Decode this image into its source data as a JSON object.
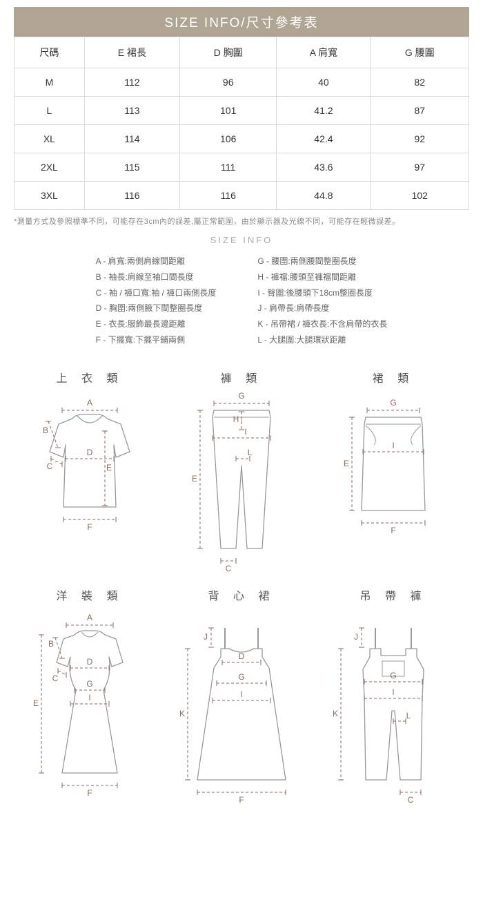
{
  "title": "SIZE  INFO/尺寸參考表",
  "table": {
    "columns": [
      "尺碼",
      "E  裙長",
      "D  胸圍",
      "A  肩寬",
      "G  腰圍"
    ],
    "rows": [
      [
        "M",
        "112",
        "96",
        "40",
        "82"
      ],
      [
        "L",
        "113",
        "101",
        "41.2",
        "87"
      ],
      [
        "XL",
        "114",
        "106",
        "42.4",
        "92"
      ],
      [
        "2XL",
        "115",
        "111",
        "43.6",
        "97"
      ],
      [
        "3XL",
        "116",
        "116",
        "44.8",
        "102"
      ]
    ]
  },
  "footnote": "*測量方式及參照標準不同，可能存在3cm內的誤差,屬正常範圍，由於顯示器及光線不同，可能存在輕微誤差。",
  "section_label": "SIZE INFO",
  "legend": {
    "left": [
      "A - 肩寬:兩側肩線間距離",
      "B - 袖長:肩線至袖口間長度",
      "C - 袖 / 褲口寬:袖 / 褲口兩側長度",
      "D - 胸圍:兩側腋下間整圈長度",
      "E - 衣長:服飾最長邊距離",
      "F - 下擺寬:下擺平鋪兩側"
    ],
    "right": [
      "G - 腰圍:兩側腰間整圈長度",
      "H - 褲襠:腰頭至褲襠間距離",
      "I - 臀圍:後腰頭下18cm整圈長度",
      "J - 肩帶長:肩帶長度",
      "K - 吊帶裙 / 褲衣長:不含肩帶的衣長",
      "L - 大腿圍:大腿環狀距離"
    ]
  },
  "garments": [
    {
      "title": "上 衣 類",
      "type": "top"
    },
    {
      "title": "褲 類",
      "type": "pants"
    },
    {
      "title": "裙 類",
      "type": "skirt"
    },
    {
      "title": "洋 裝 類",
      "type": "dress"
    },
    {
      "title": "背 心 裙",
      "type": "camisole"
    },
    {
      "title": "吊 帶 褲",
      "type": "overalls"
    }
  ],
  "svg": {
    "stroke": "#999",
    "dash": "#8a6a5a",
    "label": "#8a6a5a",
    "title_color": "#555",
    "font_size": 12
  }
}
